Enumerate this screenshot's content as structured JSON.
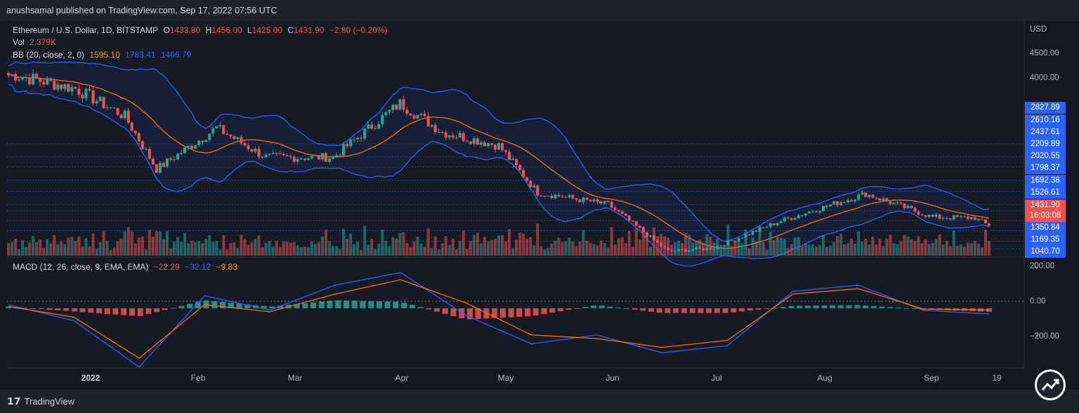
{
  "header": {
    "publish_line": "anushsamal published on TradingView.com, Sep 17, 2022 07:56 UTC"
  },
  "legend": {
    "symbol": "Ethereum / U.S. Dollar, 1D, BITSTAMP",
    "o_label": "O",
    "o_val": "1433.80",
    "h_label": "H",
    "h_val": "1456.00",
    "l_label": "L",
    "l_val": "1425.00",
    "c_label": "C",
    "c_val": "1431.90",
    "change": "−2.80 (−0.20%)",
    "vol_label": "Vol",
    "vol_val": "2.379K",
    "bb_label": "BB (20, close, 2, 0)",
    "bb_basis": "1595.10",
    "bb_upper": "1783.41",
    "bb_lower": "1406.79",
    "macd_label": "MACD (12, 26, close, 9, EMA, EMA)",
    "macd_hist": "−22.29",
    "macd_line": "−32.12",
    "macd_signal": "−9.83"
  },
  "price_axis": {
    "currency": "USD",
    "ticks": [
      "4500.00",
      "4000.00"
    ],
    "level_tags": [
      "2827.89",
      "2610.16",
      "2437.61",
      "2209.89",
      "2020.55",
      "1798.37",
      "1692.38",
      "1526.61",
      "1350.84",
      "1169.35",
      "1040.70"
    ],
    "current_price": "1431.90",
    "countdown": "16:03:08"
  },
  "macd_axis": {
    "ticks": [
      "200.00",
      "0.00",
      "−200.00"
    ]
  },
  "time_axis": {
    "labels": [
      "2022",
      "Feb",
      "Mar",
      "Apr",
      "May",
      "Jun",
      "Jul",
      "Aug",
      "Sep",
      "19"
    ]
  },
  "footer": {
    "brand": "TradingView"
  },
  "colors": {
    "up": "#26a69a",
    "down": "#ef5350",
    "bb": "#2962ff",
    "basis": "#ff6d00",
    "bg": "#131722"
  },
  "chart_data": [
    {
      "type": "candlestick",
      "title": "Ethereum / U.S. Dollar, 1D, BITSTAMP",
      "ylabel": "USD",
      "ylim": [
        950,
        4800
      ],
      "x_range": [
        "2021-12-13",
        "2022-09-17"
      ],
      "last_ohlc": {
        "open": 1433.8,
        "high": 1456.0,
        "low": 1425.0,
        "close": 1431.9
      },
      "closes_by_month": [
        {
          "date": "2021-12-15",
          "close": 4000
        },
        {
          "date": "2022-01-01",
          "close": 3770
        },
        {
          "date": "2022-01-15",
          "close": 3300
        },
        {
          "date": "2022-01-24",
          "close": 2400
        },
        {
          "date": "2022-02-10",
          "close": 3100
        },
        {
          "date": "2022-02-24",
          "close": 2600
        },
        {
          "date": "2022-03-15",
          "close": 2600
        },
        {
          "date": "2022-04-03",
          "close": 3520
        },
        {
          "date": "2022-04-15",
          "close": 3030
        },
        {
          "date": "2022-05-01",
          "close": 2800
        },
        {
          "date": "2022-05-12",
          "close": 2000
        },
        {
          "date": "2022-06-01",
          "close": 1800
        },
        {
          "date": "2022-06-18",
          "close": 1000
        },
        {
          "date": "2022-07-01",
          "close": 1060
        },
        {
          "date": "2022-07-20",
          "close": 1520
        },
        {
          "date": "2022-08-13",
          "close": 1980
        },
        {
          "date": "2022-09-01",
          "close": 1580
        },
        {
          "date": "2022-09-13",
          "close": 1570
        },
        {
          "date": "2022-09-17",
          "close": 1431.9
        }
      ],
      "bollinger": {
        "period": 20,
        "stdev": 2,
        "basis": 1595.1,
        "upper": 1783.41,
        "lower": 1406.79
      }
    },
    {
      "type": "line",
      "title": "MACD (12, 26, close, 9, EMA, EMA)",
      "ylim": [
        -320,
        240
      ],
      "series": [
        {
          "name": "MACD",
          "values": [
            20,
            -70,
            -330,
            70,
            -10,
            130,
            200,
            -40,
            -200,
            -150,
            -250,
            -210,
            95,
            130,
            -12,
            -32.12
          ]
        },
        {
          "name": "Signal",
          "values": [
            10,
            -50,
            -280,
            20,
            -20,
            80,
            160,
            30,
            -150,
            -170,
            -220,
            -180,
            80,
            110,
            -5,
            -9.83
          ]
        }
      ],
      "histogram_last": -22.29
    }
  ]
}
